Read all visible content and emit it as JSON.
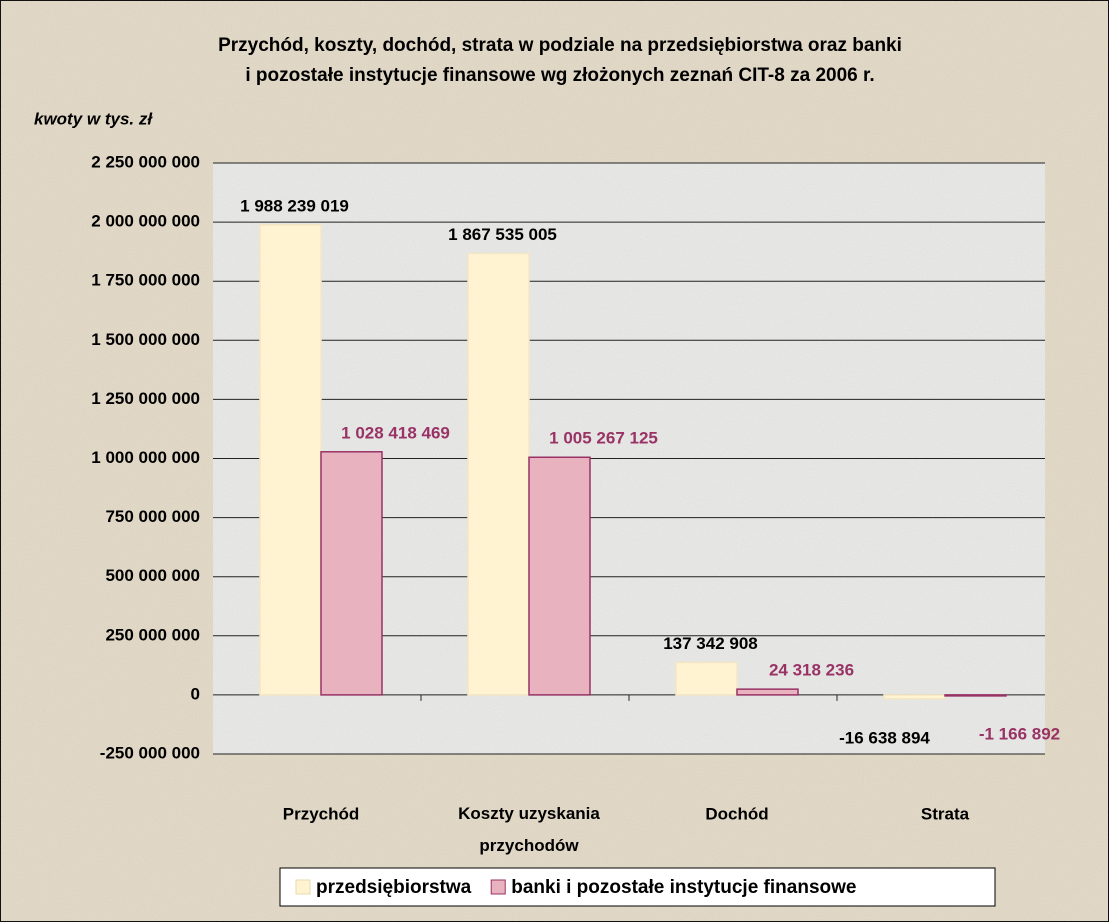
{
  "chart_data": {
    "type": "bar",
    "title": [
      "Przychód, koszty, dochód, strata w podziale na przedsiębiorstwa oraz banki",
      "i pozostałe instytucje finansowe wg złożonych zeznań CIT-8 za 2006 r."
    ],
    "y_label": "kwoty w tys. zł",
    "categories": [
      "Przychód",
      "Koszty uzyskania przychodów",
      "Dochód",
      "Strata"
    ],
    "series": [
      {
        "name": "przedsiębiorstwa",
        "color": "#fff3d2",
        "stroke": "#f3e6c4",
        "label_color": "#000000",
        "values": [
          1988239019,
          1867535005,
          137342908,
          -16638894
        ],
        "value_labels": [
          "1 988 239 019",
          "1 867 535 005",
          "137 342 908",
          "-16 638 894"
        ]
      },
      {
        "name": "banki i pozostałe instytucje finansowe",
        "color": "#e8b2bf",
        "stroke": "#993366",
        "label_color": "#993366",
        "values": [
          1028418469,
          1005267125,
          24318236,
          -1166892
        ],
        "value_labels": [
          "1 028 418 469",
          "1 005 267 125",
          "24 318 236",
          "-1 166 892"
        ]
      }
    ],
    "ylim": [
      -250000000,
      2250000000
    ],
    "yticks": [
      {
        "value": -250000000,
        "label": "-250 000 000"
      },
      0,
      {
        "value": 250000000,
        "label": "250 000 000"
      },
      {
        "value": 500000000,
        "label": "500 000 000"
      },
      {
        "value": 750000000,
        "label": "750 000 000"
      },
      {
        "value": 1000000000,
        "label": "1 000 000 000"
      },
      {
        "value": 1250000000,
        "label": "1 250 000 000"
      },
      {
        "value": 1500000000,
        "label": "1 500 000 000"
      },
      {
        "value": 1750000000,
        "label": "1 750 000 000"
      },
      {
        "value": 2000000000,
        "label": "2 000 000 000"
      },
      {
        "value": 2250000000,
        "label": "2 250 000 000"
      }
    ],
    "grid": true,
    "legend": "bottom"
  }
}
